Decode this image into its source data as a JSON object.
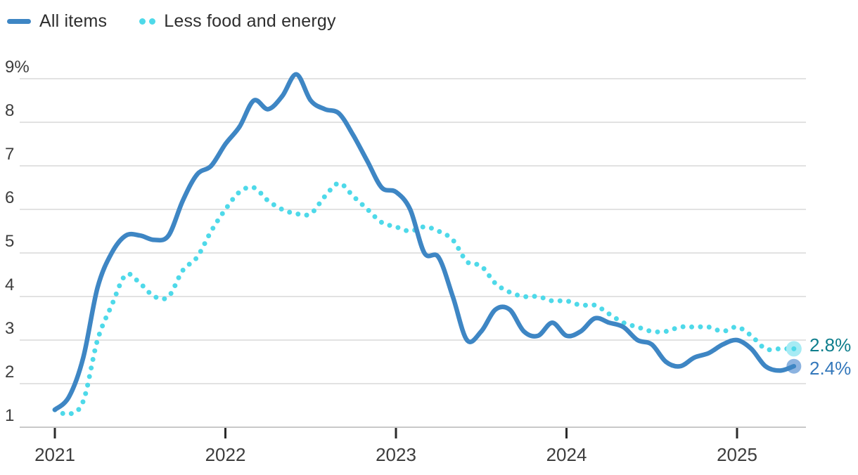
{
  "chart_data": {
    "type": "line",
    "title": "",
    "legend_position": "top-left",
    "grid": true,
    "x_axis": {
      "tick_labels": [
        "2021",
        "2022",
        "2023",
        "2024",
        "2025"
      ],
      "start_month": "2021-01",
      "end_month": "2025-05",
      "frequency": "monthly"
    },
    "y_axis": {
      "tick_labels": [
        "9%",
        "8",
        "7",
        "6",
        "5",
        "4",
        "3",
        "2",
        "1"
      ],
      "min": 1,
      "max": 9,
      "unit": "percent YoY"
    },
    "series": [
      {
        "name": "All items",
        "line_style": "solid",
        "color": "#3e86c4",
        "end_dot_color": "#8cb3e0",
        "end_label": "2.4%",
        "end_label_color": "#3478bb",
        "values": [
          1.4,
          1.7,
          2.6,
          4.2,
          5.0,
          5.4,
          5.4,
          5.3,
          5.4,
          6.2,
          6.8,
          7.0,
          7.5,
          7.9,
          8.5,
          8.3,
          8.6,
          9.1,
          8.5,
          8.3,
          8.2,
          7.7,
          7.1,
          6.5,
          6.4,
          6.0,
          5.0,
          4.9,
          4.0,
          3.0,
          3.2,
          3.7,
          3.7,
          3.2,
          3.1,
          3.4,
          3.1,
          3.2,
          3.5,
          3.4,
          3.3,
          3.0,
          2.9,
          2.5,
          2.4,
          2.6,
          2.7,
          2.9,
          3.0,
          2.8,
          2.4,
          2.3,
          2.4
        ]
      },
      {
        "name": "Less food and energy",
        "line_style": "dotted",
        "color": "#4ed9e9",
        "end_dot_color": "#a6ebf4",
        "end_label": "2.8%",
        "end_label_color": "#0e7e8c",
        "values": [
          1.4,
          1.3,
          1.6,
          3.0,
          3.8,
          4.5,
          4.3,
          4.0,
          4.0,
          4.6,
          4.9,
          5.5,
          6.0,
          6.4,
          6.5,
          6.2,
          6.0,
          5.9,
          5.9,
          6.3,
          6.6,
          6.3,
          6.0,
          5.7,
          5.6,
          5.5,
          5.6,
          5.5,
          5.3,
          4.8,
          4.7,
          4.3,
          4.1,
          4.0,
          4.0,
          3.9,
          3.9,
          3.8,
          3.8,
          3.6,
          3.4,
          3.3,
          3.2,
          3.2,
          3.3,
          3.3,
          3.3,
          3.2,
          3.3,
          3.1,
          2.8,
          2.8,
          2.8
        ]
      }
    ],
    "colors": {
      "gridline": "#d9d9d9",
      "axis_line": "#c9c9c9",
      "tick_mark": "#2b2b2b",
      "axis_text": "#3d3d3d",
      "legend_text": "#2e2e2e"
    }
  }
}
